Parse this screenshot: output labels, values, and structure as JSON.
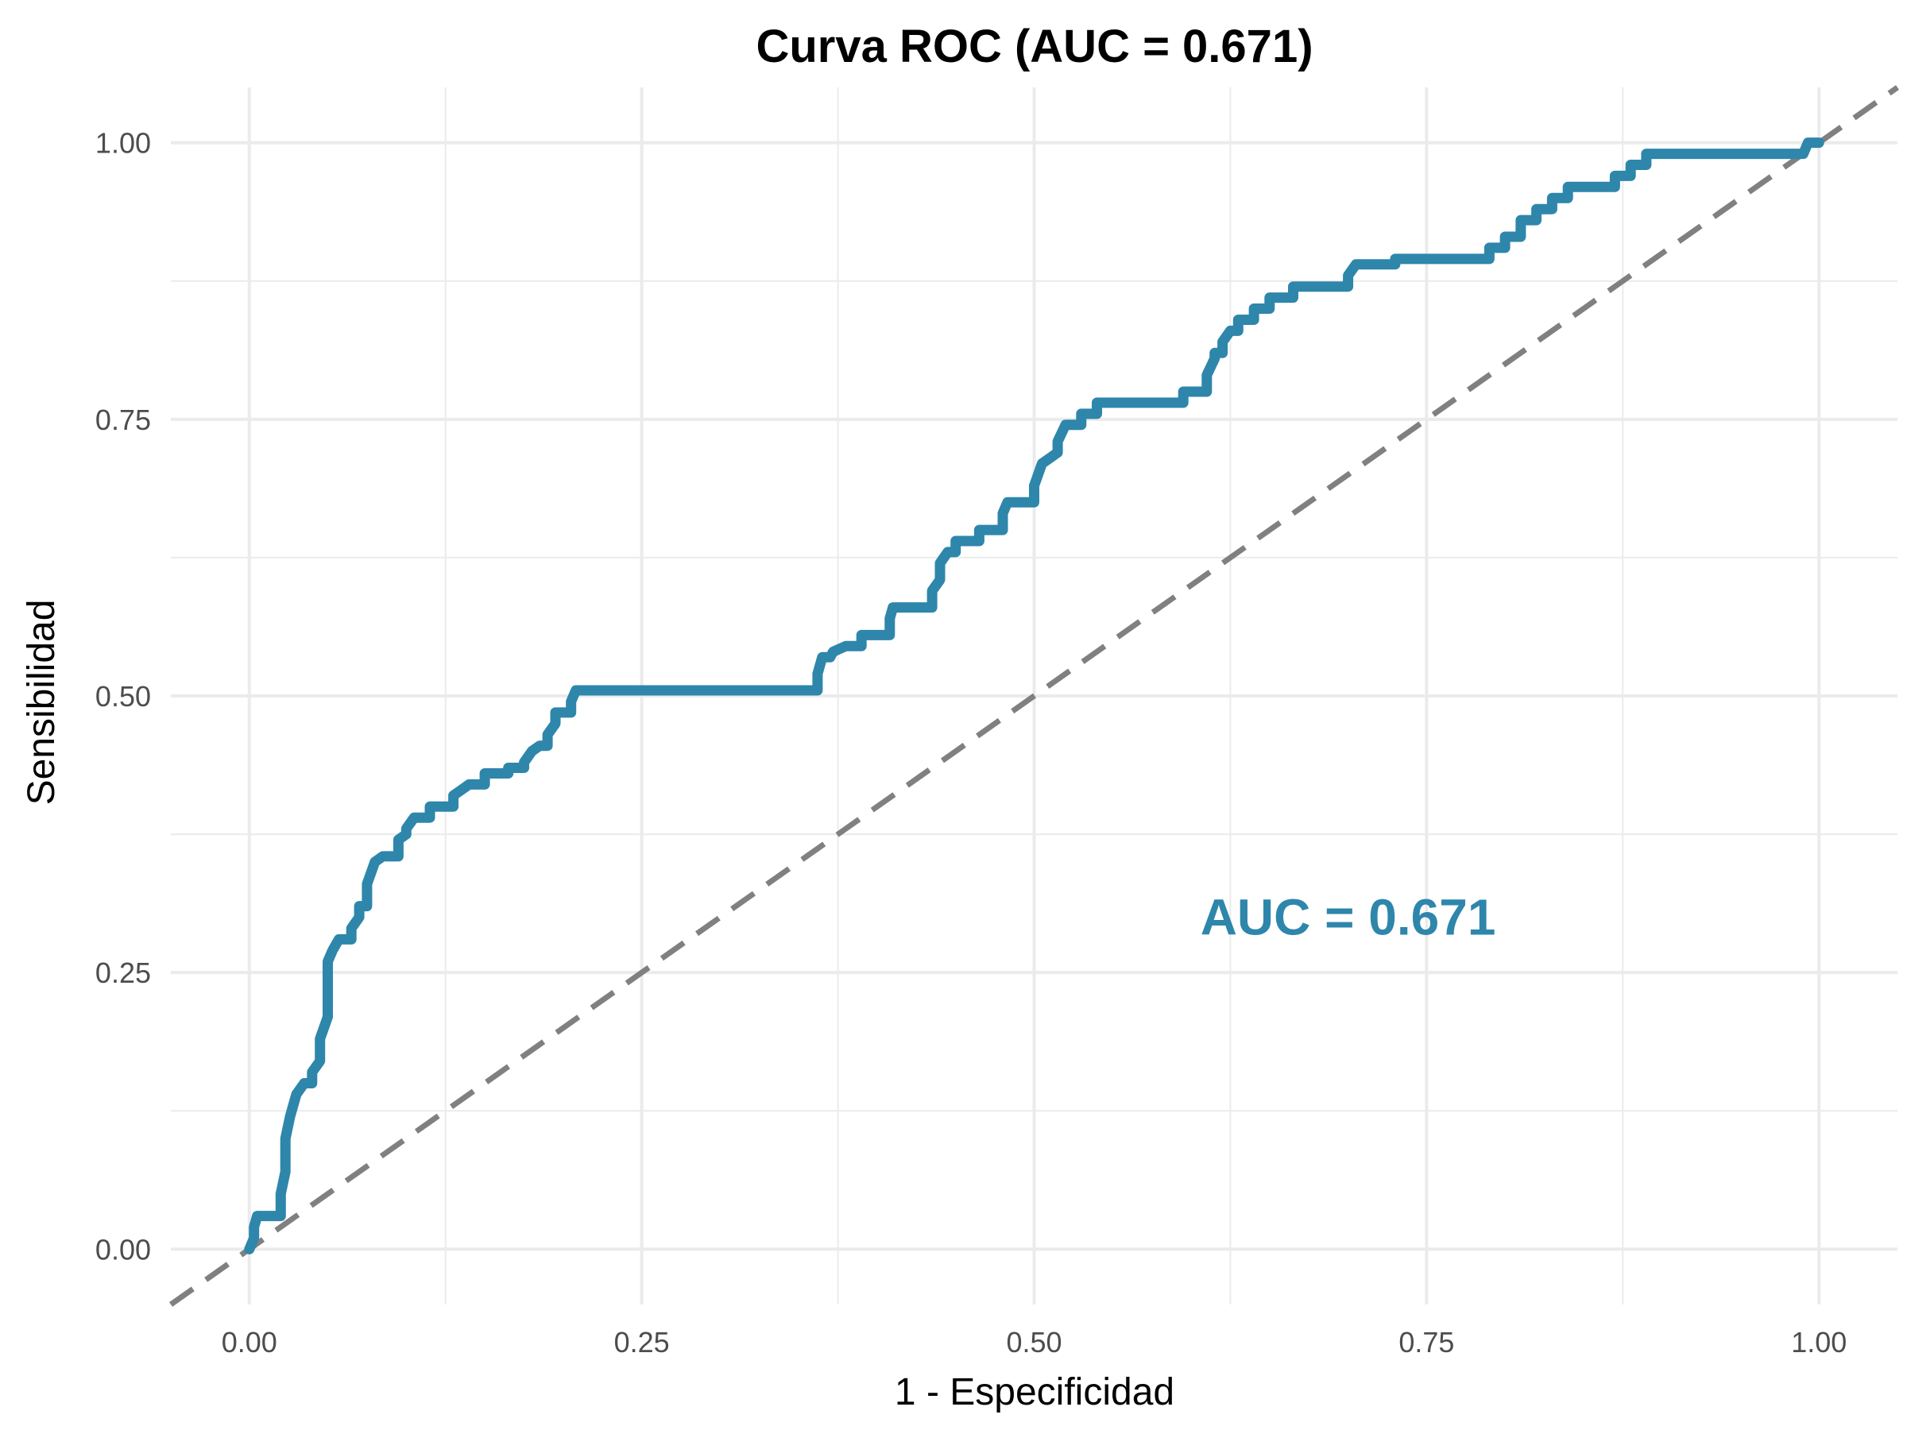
{
  "chart_data": {
    "type": "line",
    "title": "Curva ROC (AUC = 0.671)",
    "xlabel": "1 - Especificidad",
    "ylabel": "Sensibilidad",
    "xlim": [
      -0.05,
      1.05
    ],
    "ylim": [
      -0.05,
      1.05
    ],
    "x_ticks": [
      "0.00",
      "0.25",
      "0.50",
      "0.75",
      "1.00"
    ],
    "y_ticks": [
      "0.00",
      "0.25",
      "0.50",
      "0.75",
      "1.00"
    ],
    "grid": true,
    "colors": {
      "roc": "#2E86AB",
      "reference": "#808080",
      "grid": "#EBEBEB"
    },
    "annotation": {
      "text": "AUC = 0.671",
      "x": 0.7,
      "y": 0.3
    },
    "series": [
      {
        "type": "step",
        "points": [
          [
            0.0,
            0.0
          ],
          [
            0.003,
            0.01
          ],
          [
            0.003,
            0.02
          ],
          [
            0.005,
            0.03
          ],
          [
            0.02,
            0.03
          ],
          [
            0.02,
            0.05
          ],
          [
            0.023,
            0.07
          ],
          [
            0.023,
            0.1
          ],
          [
            0.026,
            0.12
          ],
          [
            0.03,
            0.14
          ],
          [
            0.035,
            0.15
          ],
          [
            0.04,
            0.15
          ],
          [
            0.04,
            0.16
          ],
          [
            0.045,
            0.17
          ],
          [
            0.045,
            0.19
          ],
          [
            0.05,
            0.21
          ],
          [
            0.05,
            0.26
          ],
          [
            0.053,
            0.27
          ],
          [
            0.057,
            0.28
          ],
          [
            0.065,
            0.28
          ],
          [
            0.065,
            0.29
          ],
          [
            0.07,
            0.3
          ],
          [
            0.07,
            0.31
          ],
          [
            0.075,
            0.31
          ],
          [
            0.075,
            0.33
          ],
          [
            0.08,
            0.35
          ],
          [
            0.085,
            0.355
          ],
          [
            0.09,
            0.355
          ],
          [
            0.095,
            0.355
          ],
          [
            0.095,
            0.37
          ],
          [
            0.1,
            0.375
          ],
          [
            0.1,
            0.38
          ],
          [
            0.105,
            0.39
          ],
          [
            0.115,
            0.39
          ],
          [
            0.115,
            0.4
          ],
          [
            0.13,
            0.4
          ],
          [
            0.13,
            0.41
          ],
          [
            0.135,
            0.415
          ],
          [
            0.14,
            0.42
          ],
          [
            0.15,
            0.42
          ],
          [
            0.15,
            0.43
          ],
          [
            0.165,
            0.43
          ],
          [
            0.165,
            0.435
          ],
          [
            0.175,
            0.435
          ],
          [
            0.175,
            0.44
          ],
          [
            0.18,
            0.45
          ],
          [
            0.185,
            0.455
          ],
          [
            0.19,
            0.455
          ],
          [
            0.19,
            0.465
          ],
          [
            0.195,
            0.475
          ],
          [
            0.195,
            0.485
          ],
          [
            0.205,
            0.485
          ],
          [
            0.205,
            0.495
          ],
          [
            0.208,
            0.505
          ],
          [
            0.362,
            0.505
          ],
          [
            0.362,
            0.52
          ],
          [
            0.365,
            0.535
          ],
          [
            0.37,
            0.535
          ],
          [
            0.372,
            0.54
          ],
          [
            0.38,
            0.545
          ],
          [
            0.39,
            0.545
          ],
          [
            0.39,
            0.555
          ],
          [
            0.408,
            0.555
          ],
          [
            0.408,
            0.57
          ],
          [
            0.41,
            0.58
          ],
          [
            0.435,
            0.58
          ],
          [
            0.435,
            0.595
          ],
          [
            0.44,
            0.605
          ],
          [
            0.44,
            0.62
          ],
          [
            0.445,
            0.63
          ],
          [
            0.45,
            0.63
          ],
          [
            0.45,
            0.64
          ],
          [
            0.465,
            0.64
          ],
          [
            0.465,
            0.65
          ],
          [
            0.48,
            0.65
          ],
          [
            0.48,
            0.665
          ],
          [
            0.483,
            0.675
          ],
          [
            0.5,
            0.675
          ],
          [
            0.5,
            0.69
          ],
          [
            0.505,
            0.71
          ],
          [
            0.51,
            0.715
          ],
          [
            0.515,
            0.72
          ],
          [
            0.515,
            0.73
          ],
          [
            0.52,
            0.745
          ],
          [
            0.53,
            0.745
          ],
          [
            0.53,
            0.755
          ],
          [
            0.54,
            0.755
          ],
          [
            0.54,
            0.765
          ],
          [
            0.595,
            0.765
          ],
          [
            0.595,
            0.775
          ],
          [
            0.61,
            0.775
          ],
          [
            0.61,
            0.79
          ],
          [
            0.615,
            0.805
          ],
          [
            0.615,
            0.81
          ],
          [
            0.62,
            0.81
          ],
          [
            0.62,
            0.82
          ],
          [
            0.625,
            0.83
          ],
          [
            0.63,
            0.83
          ],
          [
            0.63,
            0.84
          ],
          [
            0.64,
            0.84
          ],
          [
            0.64,
            0.85
          ],
          [
            0.65,
            0.85
          ],
          [
            0.65,
            0.86
          ],
          [
            0.665,
            0.86
          ],
          [
            0.665,
            0.87
          ],
          [
            0.7,
            0.87
          ],
          [
            0.7,
            0.88
          ],
          [
            0.705,
            0.89
          ],
          [
            0.73,
            0.89
          ],
          [
            0.73,
            0.895
          ],
          [
            0.79,
            0.895
          ],
          [
            0.79,
            0.905
          ],
          [
            0.8,
            0.905
          ],
          [
            0.8,
            0.915
          ],
          [
            0.81,
            0.915
          ],
          [
            0.81,
            0.93
          ],
          [
            0.82,
            0.93
          ],
          [
            0.82,
            0.94
          ],
          [
            0.83,
            0.94
          ],
          [
            0.83,
            0.95
          ],
          [
            0.84,
            0.95
          ],
          [
            0.84,
            0.96
          ],
          [
            0.87,
            0.96
          ],
          [
            0.87,
            0.97
          ],
          [
            0.88,
            0.97
          ],
          [
            0.88,
            0.98
          ],
          [
            0.89,
            0.98
          ],
          [
            0.89,
            0.99
          ],
          [
            0.99,
            0.99
          ],
          [
            0.993,
            1.0
          ],
          [
            1.0,
            1.0
          ]
        ]
      },
      {
        "type": "reference",
        "points": [
          [
            -0.05,
            -0.05
          ],
          [
            1.05,
            1.05
          ]
        ]
      }
    ]
  }
}
